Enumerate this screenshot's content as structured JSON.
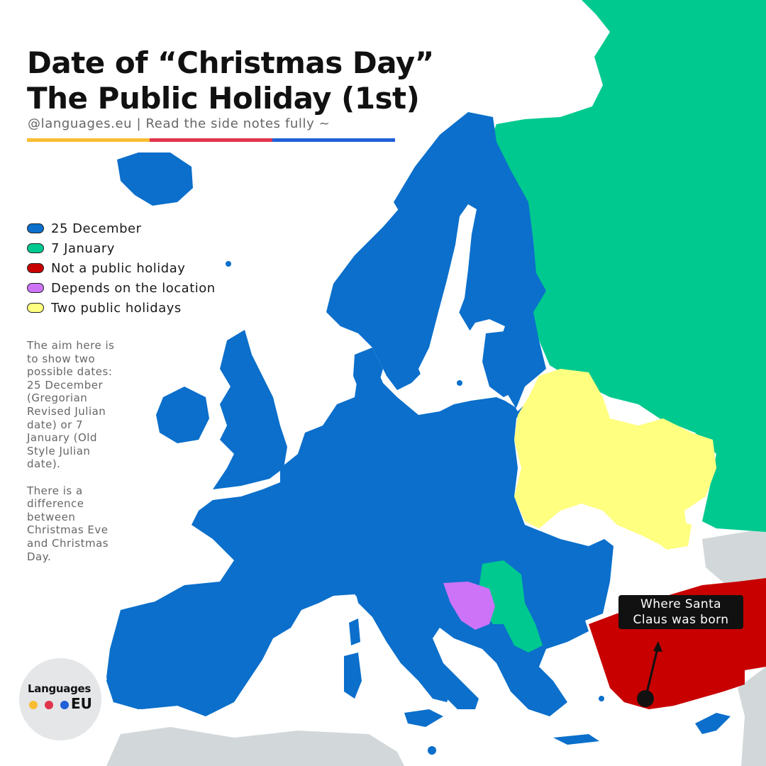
{
  "header": {
    "title_line1": "Date of “Christmas Day”",
    "title_line2": "The Public Holiday (1st)",
    "subtitle": "@languages.eu | Read the side notes fully ~",
    "bar_colors": [
      "#f8bd32",
      "#e0344d",
      "#2060d8"
    ]
  },
  "legend": {
    "items": [
      {
        "label": "25 December",
        "color": "#0b6fcb"
      },
      {
        "label": "7 January",
        "color": "#00c98f"
      },
      {
        "label": "Not a public holiday",
        "color": "#c80000"
      },
      {
        "label": "Depends on the location",
        "color": "#cc73f8"
      },
      {
        "label": "Two public holidays",
        "color": "#ffff80"
      }
    ]
  },
  "notes": {
    "paragraph1": "The aim here is to show two possible dates: 25 December (Gregorian Revised Julian date) or 7 January (Old Style Julian date).",
    "paragraph2": "There is a difference between Christmas Eve and Christmas Day."
  },
  "callout": {
    "line1": "Where Santa",
    "line2": "Claus was born"
  },
  "logo": {
    "text_top": "Languages",
    "text_bottom": "EU",
    "dot_colors": [
      "#f8bd32",
      "#e0344d",
      "#2060d8"
    ]
  },
  "map": {
    "colors": {
      "december_25": "#0b6fcb",
      "january_7": "#00c98f",
      "not_holiday": "#c80000",
      "depends": "#cc73f8",
      "two_holidays": "#ffff80",
      "other_land": "#d2d8da"
    }
  }
}
